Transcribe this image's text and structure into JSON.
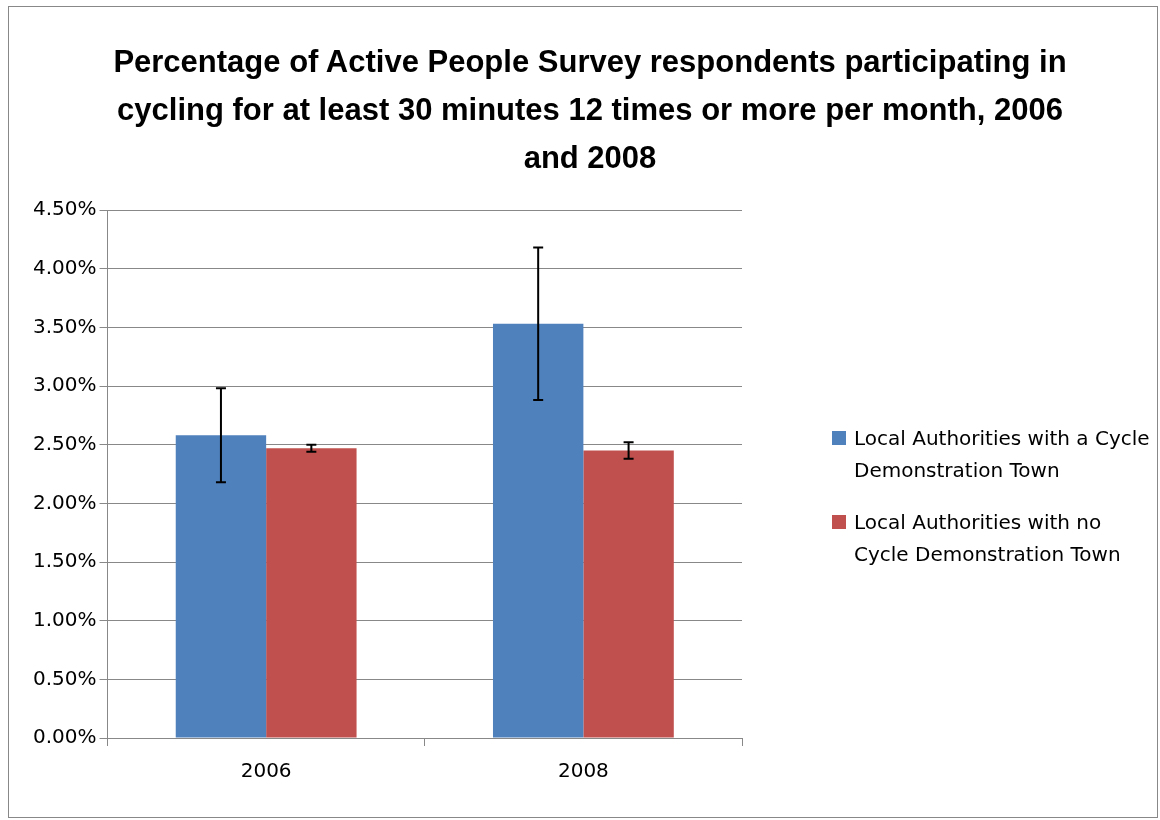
{
  "chart_data": {
    "type": "bar",
    "title": "Percentage of Active People Survey respondents participating in cycling for at least 30 minutes 12 times or more per month, 2006 and 2008",
    "categories": [
      "2006",
      "2008"
    ],
    "series": [
      {
        "name": "Local Authorities with a Cycle Demonstration Town",
        "color": "#4f81bd",
        "values": [
          2.58,
          3.53
        ],
        "errors": [
          0.4,
          0.65
        ]
      },
      {
        "name": "Local Authorities with no Cycle Demonstration Town",
        "color": "#c0504d",
        "values": [
          2.47,
          2.45
        ],
        "errors": [
          0.03,
          0.07
        ]
      }
    ],
    "ylim": [
      0,
      4.5
    ],
    "yticks": [
      {
        "value": 0,
        "label": "0.00%"
      },
      {
        "value": 0.5,
        "label": "0.50%"
      },
      {
        "value": 1,
        "label": "1.00%"
      },
      {
        "value": 1.5,
        "label": "1.50%"
      },
      {
        "value": 2,
        "label": "2.00%"
      },
      {
        "value": 2.5,
        "label": "2.50%"
      },
      {
        "value": 3,
        "label": "3.00%"
      },
      {
        "value": 3.5,
        "label": "3.50%"
      },
      {
        "value": 4,
        "label": "4.00%"
      },
      {
        "value": 4.5,
        "label": "4.50%"
      }
    ],
    "grid": "y",
    "legend": "right"
  }
}
